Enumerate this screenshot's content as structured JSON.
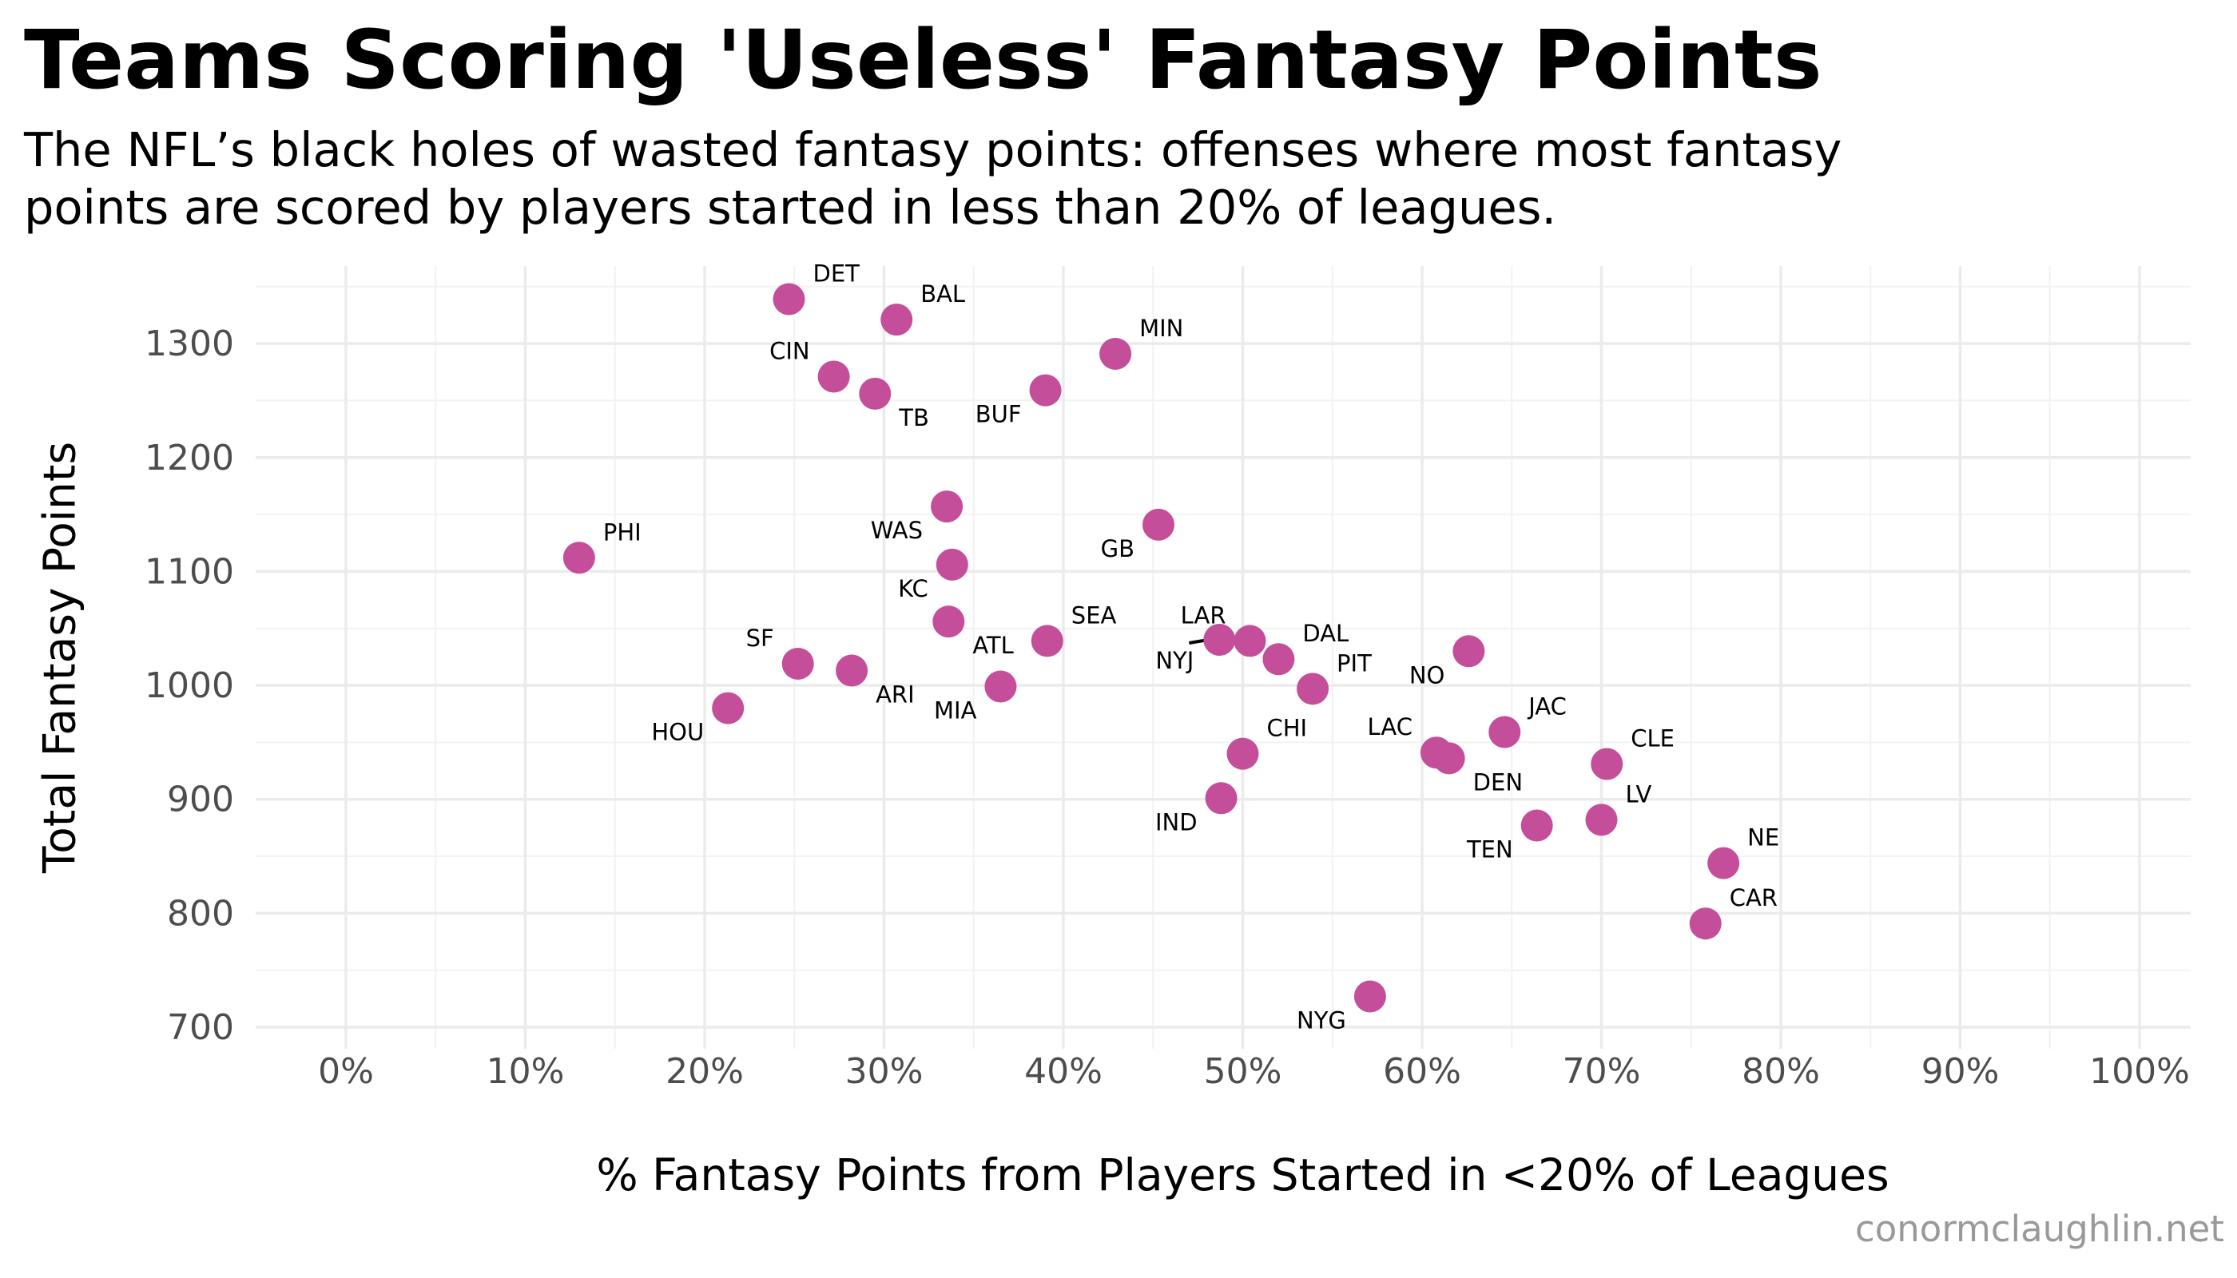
{
  "chart_data": {
    "type": "scatter",
    "title": "Teams Scoring 'Useless' Fantasy Points",
    "subtitle": [
      "The NFL’s black holes of wasted fantasy points: offenses where most fantasy",
      "points are scored by players started in less than 20% of leagues."
    ],
    "xlabel": "% Fantasy Points from Players Started in <20% of Leagues",
    "ylabel": "Total Fantasy Points",
    "caption": "conormclaughlin.net",
    "xlim": [
      0,
      100
    ],
    "ylim": [
      700,
      1340
    ],
    "x_ticks": [
      0,
      10,
      20,
      30,
      40,
      50,
      60,
      70,
      80,
      90,
      100
    ],
    "x_tick_labels": [
      "0%",
      "10%",
      "20%",
      "30%",
      "40%",
      "50%",
      "60%",
      "70%",
      "80%",
      "90%",
      "100%"
    ],
    "y_ticks": [
      700,
      800,
      900,
      1000,
      1100,
      1200,
      1300
    ],
    "y_tick_labels": [
      "700",
      "800",
      "900",
      "1000",
      "1100",
      "1200",
      "1300"
    ],
    "grid": true,
    "point_color": "#c44e9a",
    "points": [
      {
        "team": "DET",
        "x": 24.7,
        "y": 1339,
        "label_pos": "upper-right"
      },
      {
        "team": "BAL",
        "x": 30.7,
        "y": 1321,
        "label_pos": "upper-right"
      },
      {
        "team": "MIN",
        "x": 42.9,
        "y": 1291,
        "label_pos": "upper-right"
      },
      {
        "team": "CIN",
        "x": 27.2,
        "y": 1271,
        "label_pos": "upper-left"
      },
      {
        "team": "TB",
        "x": 29.5,
        "y": 1256,
        "label_pos": "lower-right"
      },
      {
        "team": "BUF",
        "x": 39.0,
        "y": 1259,
        "label_pos": "lower-left"
      },
      {
        "team": "WAS",
        "x": 33.5,
        "y": 1157,
        "label_pos": "lower-left"
      },
      {
        "team": "GB",
        "x": 45.3,
        "y": 1141,
        "label_pos": "lower-left"
      },
      {
        "team": "PHI",
        "x": 13.0,
        "y": 1112,
        "label_pos": "upper-right"
      },
      {
        "team": "KC",
        "x": 33.8,
        "y": 1106,
        "label_pos": "lower-left"
      },
      {
        "team": "ATL",
        "x": 33.6,
        "y": 1056,
        "label_pos": "lower-right"
      },
      {
        "team": "SEA",
        "x": 39.1,
        "y": 1039,
        "label_pos": "upper-right"
      },
      {
        "team": "NYJ",
        "x": 48.7,
        "y": 1040,
        "label_pos": "lower-left"
      },
      {
        "team": "LAR",
        "x": 50.4,
        "y": 1039,
        "label_pos": "upper-left"
      },
      {
        "team": "DAL",
        "x": 52.0,
        "y": 1023,
        "label_pos": "upper-right"
      },
      {
        "team": "NO",
        "x": 62.6,
        "y": 1030,
        "label_pos": "lower-left"
      },
      {
        "team": "SF",
        "x": 25.2,
        "y": 1019,
        "label_pos": "upper-left"
      },
      {
        "team": "ARI",
        "x": 28.2,
        "y": 1013,
        "label_pos": "lower-right"
      },
      {
        "team": "MIA",
        "x": 36.5,
        "y": 999,
        "label_pos": "lower-left"
      },
      {
        "team": "PIT",
        "x": 53.9,
        "y": 997,
        "label_pos": "upper-right"
      },
      {
        "team": "HOU",
        "x": 21.3,
        "y": 980,
        "label_pos": "lower-left"
      },
      {
        "team": "JAC",
        "x": 64.6,
        "y": 959,
        "label_pos": "upper-right"
      },
      {
        "team": "CHI",
        "x": 50.0,
        "y": 940,
        "label_pos": "upper-right"
      },
      {
        "team": "LAC",
        "x": 60.8,
        "y": 941,
        "label_pos": "upper-left"
      },
      {
        "team": "DEN",
        "x": 61.5,
        "y": 936,
        "label_pos": "lower-right"
      },
      {
        "team": "CLE",
        "x": 70.3,
        "y": 931,
        "label_pos": "upper-right"
      },
      {
        "team": "IND",
        "x": 48.8,
        "y": 901,
        "label_pos": "lower-left"
      },
      {
        "team": "LV",
        "x": 70.0,
        "y": 882,
        "label_pos": "upper-right"
      },
      {
        "team": "TEN",
        "x": 66.4,
        "y": 877,
        "label_pos": "lower-left"
      },
      {
        "team": "NE",
        "x": 76.8,
        "y": 844,
        "label_pos": "upper-right"
      },
      {
        "team": "CAR",
        "x": 75.8,
        "y": 791,
        "label_pos": "upper-right"
      },
      {
        "team": "NYG",
        "x": 57.1,
        "y": 727,
        "label_pos": "lower-left"
      }
    ]
  }
}
